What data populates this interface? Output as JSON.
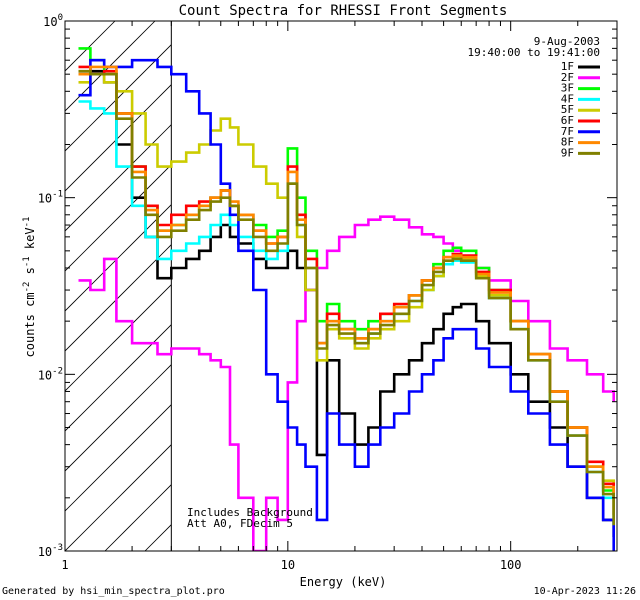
{
  "chart_data": {
    "type": "line",
    "title": "Count Spectra for RHESSI Front Segments",
    "xlabel": "Energy (keV)",
    "ylabel": "counts cm",
    "ylabel_sup1": "-2",
    "ylabel_mid": " s",
    "ylabel_sup2": "-1",
    "ylabel_end": " keV",
    "ylabel_sup3": "-1",
    "x_scale": "log",
    "y_scale": "log",
    "xlim": [
      1,
      300
    ],
    "ylim": [
      0.001,
      1
    ],
    "x_ticks": [
      {
        "value": 1,
        "label": "1"
      },
      {
        "value": 10,
        "label": "10"
      },
      {
        "value": 100,
        "label": "100"
      }
    ],
    "y_ticks": [
      {
        "value": 1,
        "base": "10",
        "exp": "0"
      },
      {
        "value": 0.1,
        "base": "10",
        "exp": "-1"
      },
      {
        "value": 0.01,
        "base": "10",
        "exp": "-2"
      },
      {
        "value": 0.001,
        "base": "10",
        "exp": "-3"
      }
    ],
    "date": "9-Aug-2003",
    "time_range": "19:40:00 to 19:41:00",
    "annotation_line1": "Includes Background",
    "annotation_line2": "Att A0, FDecim 5",
    "hatch_xrange": [
      1,
      3
    ],
    "legend_position": "top-right",
    "series": [
      {
        "name": "1F",
        "color": "#000000",
        "x": [
          1.15,
          1.3,
          1.5,
          1.7,
          2.0,
          2.3,
          2.6,
          3.0,
          3.5,
          4.0,
          4.5,
          5.0,
          5.5,
          6.0,
          7.0,
          8.0,
          9.0,
          10.0,
          11.0,
          12.0,
          13.5,
          15,
          17,
          20,
          23,
          26,
          30,
          35,
          40,
          45,
          50,
          55,
          60,
          70,
          80,
          100,
          120,
          150,
          180,
          220,
          260,
          290
        ],
        "y": [
          0.5,
          0.52,
          0.45,
          0.2,
          0.1,
          0.06,
          0.035,
          0.04,
          0.045,
          0.05,
          0.06,
          0.07,
          0.06,
          0.055,
          0.045,
          0.04,
          0.04,
          0.05,
          0.04,
          0.03,
          0.0035,
          0.012,
          0.006,
          0.004,
          0.005,
          0.008,
          0.01,
          0.012,
          0.015,
          0.018,
          0.022,
          0.024,
          0.025,
          0.02,
          0.015,
          0.01,
          0.007,
          0.005,
          0.003,
          0.002,
          0.0015,
          0.0012
        ]
      },
      {
        "name": "2F",
        "color": "#ff00ff",
        "x": [
          1.15,
          1.3,
          1.5,
          1.7,
          2.0,
          2.3,
          2.6,
          3.0,
          3.5,
          4.0,
          4.5,
          5.0,
          5.5,
          6.0,
          7.0,
          8.0,
          9.0,
          10.0,
          11.0,
          12.0,
          13.5,
          15,
          17,
          20,
          23,
          26,
          30,
          35,
          40,
          45,
          50,
          55,
          60,
          70,
          80,
          100,
          120,
          150,
          180,
          220,
          260,
          290
        ],
        "y": [
          0.034,
          0.03,
          0.045,
          0.02,
          0.015,
          0.015,
          0.013,
          0.014,
          0.014,
          0.013,
          0.012,
          0.011,
          0.004,
          0.002,
          0.001,
          0.002,
          0.0015,
          0.009,
          0.02,
          0.03,
          0.04,
          0.05,
          0.06,
          0.07,
          0.075,
          0.078,
          0.075,
          0.068,
          0.062,
          0.06,
          0.055,
          0.05,
          0.045,
          0.04,
          0.034,
          0.026,
          0.02,
          0.014,
          0.012,
          0.01,
          0.008,
          0.007
        ]
      },
      {
        "name": "3F",
        "color": "#00ff00",
        "x": [
          1.15,
          1.3,
          1.5,
          1.7,
          2.0,
          2.3,
          2.6,
          3.0,
          3.5,
          4.0,
          4.5,
          5.0,
          5.5,
          6.0,
          7.0,
          8.0,
          9.0,
          10.0,
          11.0,
          12.0,
          13.5,
          15,
          17,
          20,
          23,
          26,
          30,
          35,
          40,
          45,
          50,
          55,
          60,
          70,
          80,
          100,
          120,
          150,
          180,
          220,
          260,
          290
        ],
        "y": [
          0.7,
          0.6,
          0.5,
          0.3,
          0.15,
          0.09,
          0.065,
          0.07,
          0.08,
          0.09,
          0.1,
          0.11,
          0.09,
          0.08,
          0.07,
          0.06,
          0.065,
          0.19,
          0.1,
          0.05,
          0.02,
          0.025,
          0.02,
          0.018,
          0.02,
          0.022,
          0.024,
          0.028,
          0.034,
          0.042,
          0.05,
          0.052,
          0.05,
          0.04,
          0.03,
          0.02,
          0.013,
          0.008,
          0.005,
          0.003,
          0.0022,
          0.0015
        ]
      },
      {
        "name": "4F",
        "color": "#00ffff",
        "x": [
          1.15,
          1.3,
          1.5,
          1.7,
          2.0,
          2.3,
          2.6,
          3.0,
          3.5,
          4.0,
          4.5,
          5.0,
          5.5,
          6.0,
          7.0,
          8.0,
          9.0,
          10.0,
          11.0,
          12.0,
          13.5,
          15,
          17,
          20,
          23,
          26,
          30,
          35,
          40,
          45,
          50,
          55,
          60,
          70,
          80,
          100,
          120,
          150,
          180,
          220,
          260,
          290
        ],
        "y": [
          0.35,
          0.32,
          0.3,
          0.15,
          0.09,
          0.06,
          0.045,
          0.05,
          0.055,
          0.06,
          0.07,
          0.08,
          0.07,
          0.06,
          0.05,
          0.045,
          0.05,
          0.12,
          0.07,
          0.04,
          0.015,
          0.02,
          0.018,
          0.015,
          0.017,
          0.02,
          0.022,
          0.026,
          0.03,
          0.036,
          0.042,
          0.044,
          0.043,
          0.035,
          0.027,
          0.018,
          0.012,
          0.007,
          0.0045,
          0.0028,
          0.002,
          0.0014
        ]
      },
      {
        "name": "5F",
        "color": "#cccc00",
        "x": [
          1.15,
          1.3,
          1.5,
          1.7,
          2.0,
          2.3,
          2.6,
          3.0,
          3.5,
          4.0,
          4.5,
          5.0,
          5.5,
          6.0,
          7.0,
          8.0,
          9.0,
          10.0,
          11.0,
          12.0,
          13.5,
          15,
          17,
          20,
          23,
          26,
          30,
          35,
          40,
          45,
          50,
          55,
          60,
          70,
          80,
          100,
          120,
          150,
          180,
          220,
          260,
          290
        ],
        "y": [
          0.45,
          0.5,
          0.45,
          0.4,
          0.3,
          0.2,
          0.15,
          0.16,
          0.18,
          0.2,
          0.24,
          0.28,
          0.25,
          0.2,
          0.15,
          0.12,
          0.1,
          0.12,
          0.06,
          0.03,
          0.012,
          0.018,
          0.016,
          0.014,
          0.016,
          0.018,
          0.02,
          0.024,
          0.03,
          0.036,
          0.044,
          0.046,
          0.045,
          0.036,
          0.028,
          0.02,
          0.013,
          0.008,
          0.005,
          0.003,
          0.0025,
          0.002
        ]
      },
      {
        "name": "6F",
        "color": "#ff0000",
        "x": [
          1.15,
          1.3,
          1.5,
          1.7,
          2.0,
          2.3,
          2.6,
          3.0,
          3.5,
          4.0,
          4.5,
          5.0,
          5.5,
          6.0,
          7.0,
          8.0,
          9.0,
          10.0,
          11.0,
          12.0,
          13.5,
          15,
          17,
          20,
          23,
          26,
          30,
          35,
          40,
          45,
          50,
          55,
          60,
          70,
          80,
          100,
          120,
          150,
          180,
          220,
          260,
          290
        ],
        "y": [
          0.55,
          0.5,
          0.52,
          0.3,
          0.15,
          0.09,
          0.07,
          0.08,
          0.09,
          0.095,
          0.1,
          0.11,
          0.09,
          0.08,
          0.065,
          0.055,
          0.06,
          0.15,
          0.08,
          0.045,
          0.015,
          0.022,
          0.018,
          0.016,
          0.018,
          0.022,
          0.025,
          0.028,
          0.034,
          0.04,
          0.046,
          0.048,
          0.047,
          0.038,
          0.03,
          0.02,
          0.013,
          0.008,
          0.005,
          0.0032,
          0.0024,
          0.0016
        ]
      },
      {
        "name": "7F",
        "color": "#0000ff",
        "x": [
          1.15,
          1.3,
          1.5,
          1.7,
          2.0,
          2.3,
          2.6,
          3.0,
          3.5,
          4.0,
          4.5,
          5.0,
          5.5,
          6.0,
          7.0,
          8.0,
          9.0,
          10.0,
          11.0,
          12.0,
          13.5,
          15,
          17,
          20,
          23,
          26,
          30,
          35,
          40,
          45,
          50,
          55,
          60,
          70,
          80,
          100,
          120,
          150,
          180,
          220,
          260,
          290
        ],
        "y": [
          0.38,
          0.6,
          0.55,
          0.55,
          0.6,
          0.6,
          0.55,
          0.5,
          0.4,
          0.3,
          0.2,
          0.12,
          0.08,
          0.05,
          0.03,
          0.01,
          0.007,
          0.005,
          0.004,
          0.003,
          0.0015,
          0.006,
          0.004,
          0.003,
          0.004,
          0.005,
          0.006,
          0.008,
          0.01,
          0.012,
          0.016,
          0.018,
          0.018,
          0.014,
          0.011,
          0.008,
          0.006,
          0.004,
          0.003,
          0.002,
          0.0015,
          0.001
        ]
      },
      {
        "name": "8F",
        "color": "#ff8800",
        "x": [
          1.15,
          1.3,
          1.5,
          1.7,
          2.0,
          2.3,
          2.6,
          3.0,
          3.5,
          4.0,
          4.5,
          5.0,
          5.5,
          6.0,
          7.0,
          8.0,
          9.0,
          10.0,
          11.0,
          12.0,
          13.5,
          15,
          17,
          20,
          23,
          26,
          30,
          35,
          40,
          45,
          50,
          55,
          60,
          70,
          80,
          100,
          120,
          150,
          180,
          220,
          260,
          290
        ],
        "y": [
          0.5,
          0.55,
          0.55,
          0.3,
          0.14,
          0.085,
          0.065,
          0.07,
          0.08,
          0.09,
          0.1,
          0.11,
          0.095,
          0.08,
          0.065,
          0.055,
          0.06,
          0.14,
          0.075,
          0.04,
          0.015,
          0.02,
          0.018,
          0.016,
          0.018,
          0.02,
          0.024,
          0.028,
          0.034,
          0.04,
          0.046,
          0.047,
          0.046,
          0.037,
          0.029,
          0.02,
          0.013,
          0.008,
          0.005,
          0.003,
          0.0023,
          0.0015
        ]
      },
      {
        "name": "9F",
        "color": "#808000",
        "x": [
          1.15,
          1.3,
          1.5,
          1.7,
          2.0,
          2.3,
          2.6,
          3.0,
          3.5,
          4.0,
          4.5,
          5.0,
          5.5,
          6.0,
          7.0,
          8.0,
          9.0,
          10.0,
          11.0,
          12.0,
          13.5,
          15,
          17,
          20,
          23,
          26,
          30,
          35,
          40,
          45,
          50,
          55,
          60,
          70,
          80,
          100,
          120,
          150,
          180,
          220,
          260,
          290
        ],
        "y": [
          0.52,
          0.5,
          0.5,
          0.28,
          0.13,
          0.08,
          0.06,
          0.065,
          0.075,
          0.085,
          0.095,
          0.1,
          0.09,
          0.075,
          0.06,
          0.05,
          0.055,
          0.12,
          0.07,
          0.04,
          0.014,
          0.019,
          0.017,
          0.015,
          0.017,
          0.019,
          0.022,
          0.026,
          0.032,
          0.038,
          0.044,
          0.045,
          0.044,
          0.035,
          0.027,
          0.018,
          0.012,
          0.007,
          0.0045,
          0.0028,
          0.0021,
          0.0014
        ]
      }
    ]
  },
  "footer": {
    "generated_by": "Generated by hsi_min_spectra_plot.pro",
    "timestamp": "10-Apr-2023 11:26"
  }
}
